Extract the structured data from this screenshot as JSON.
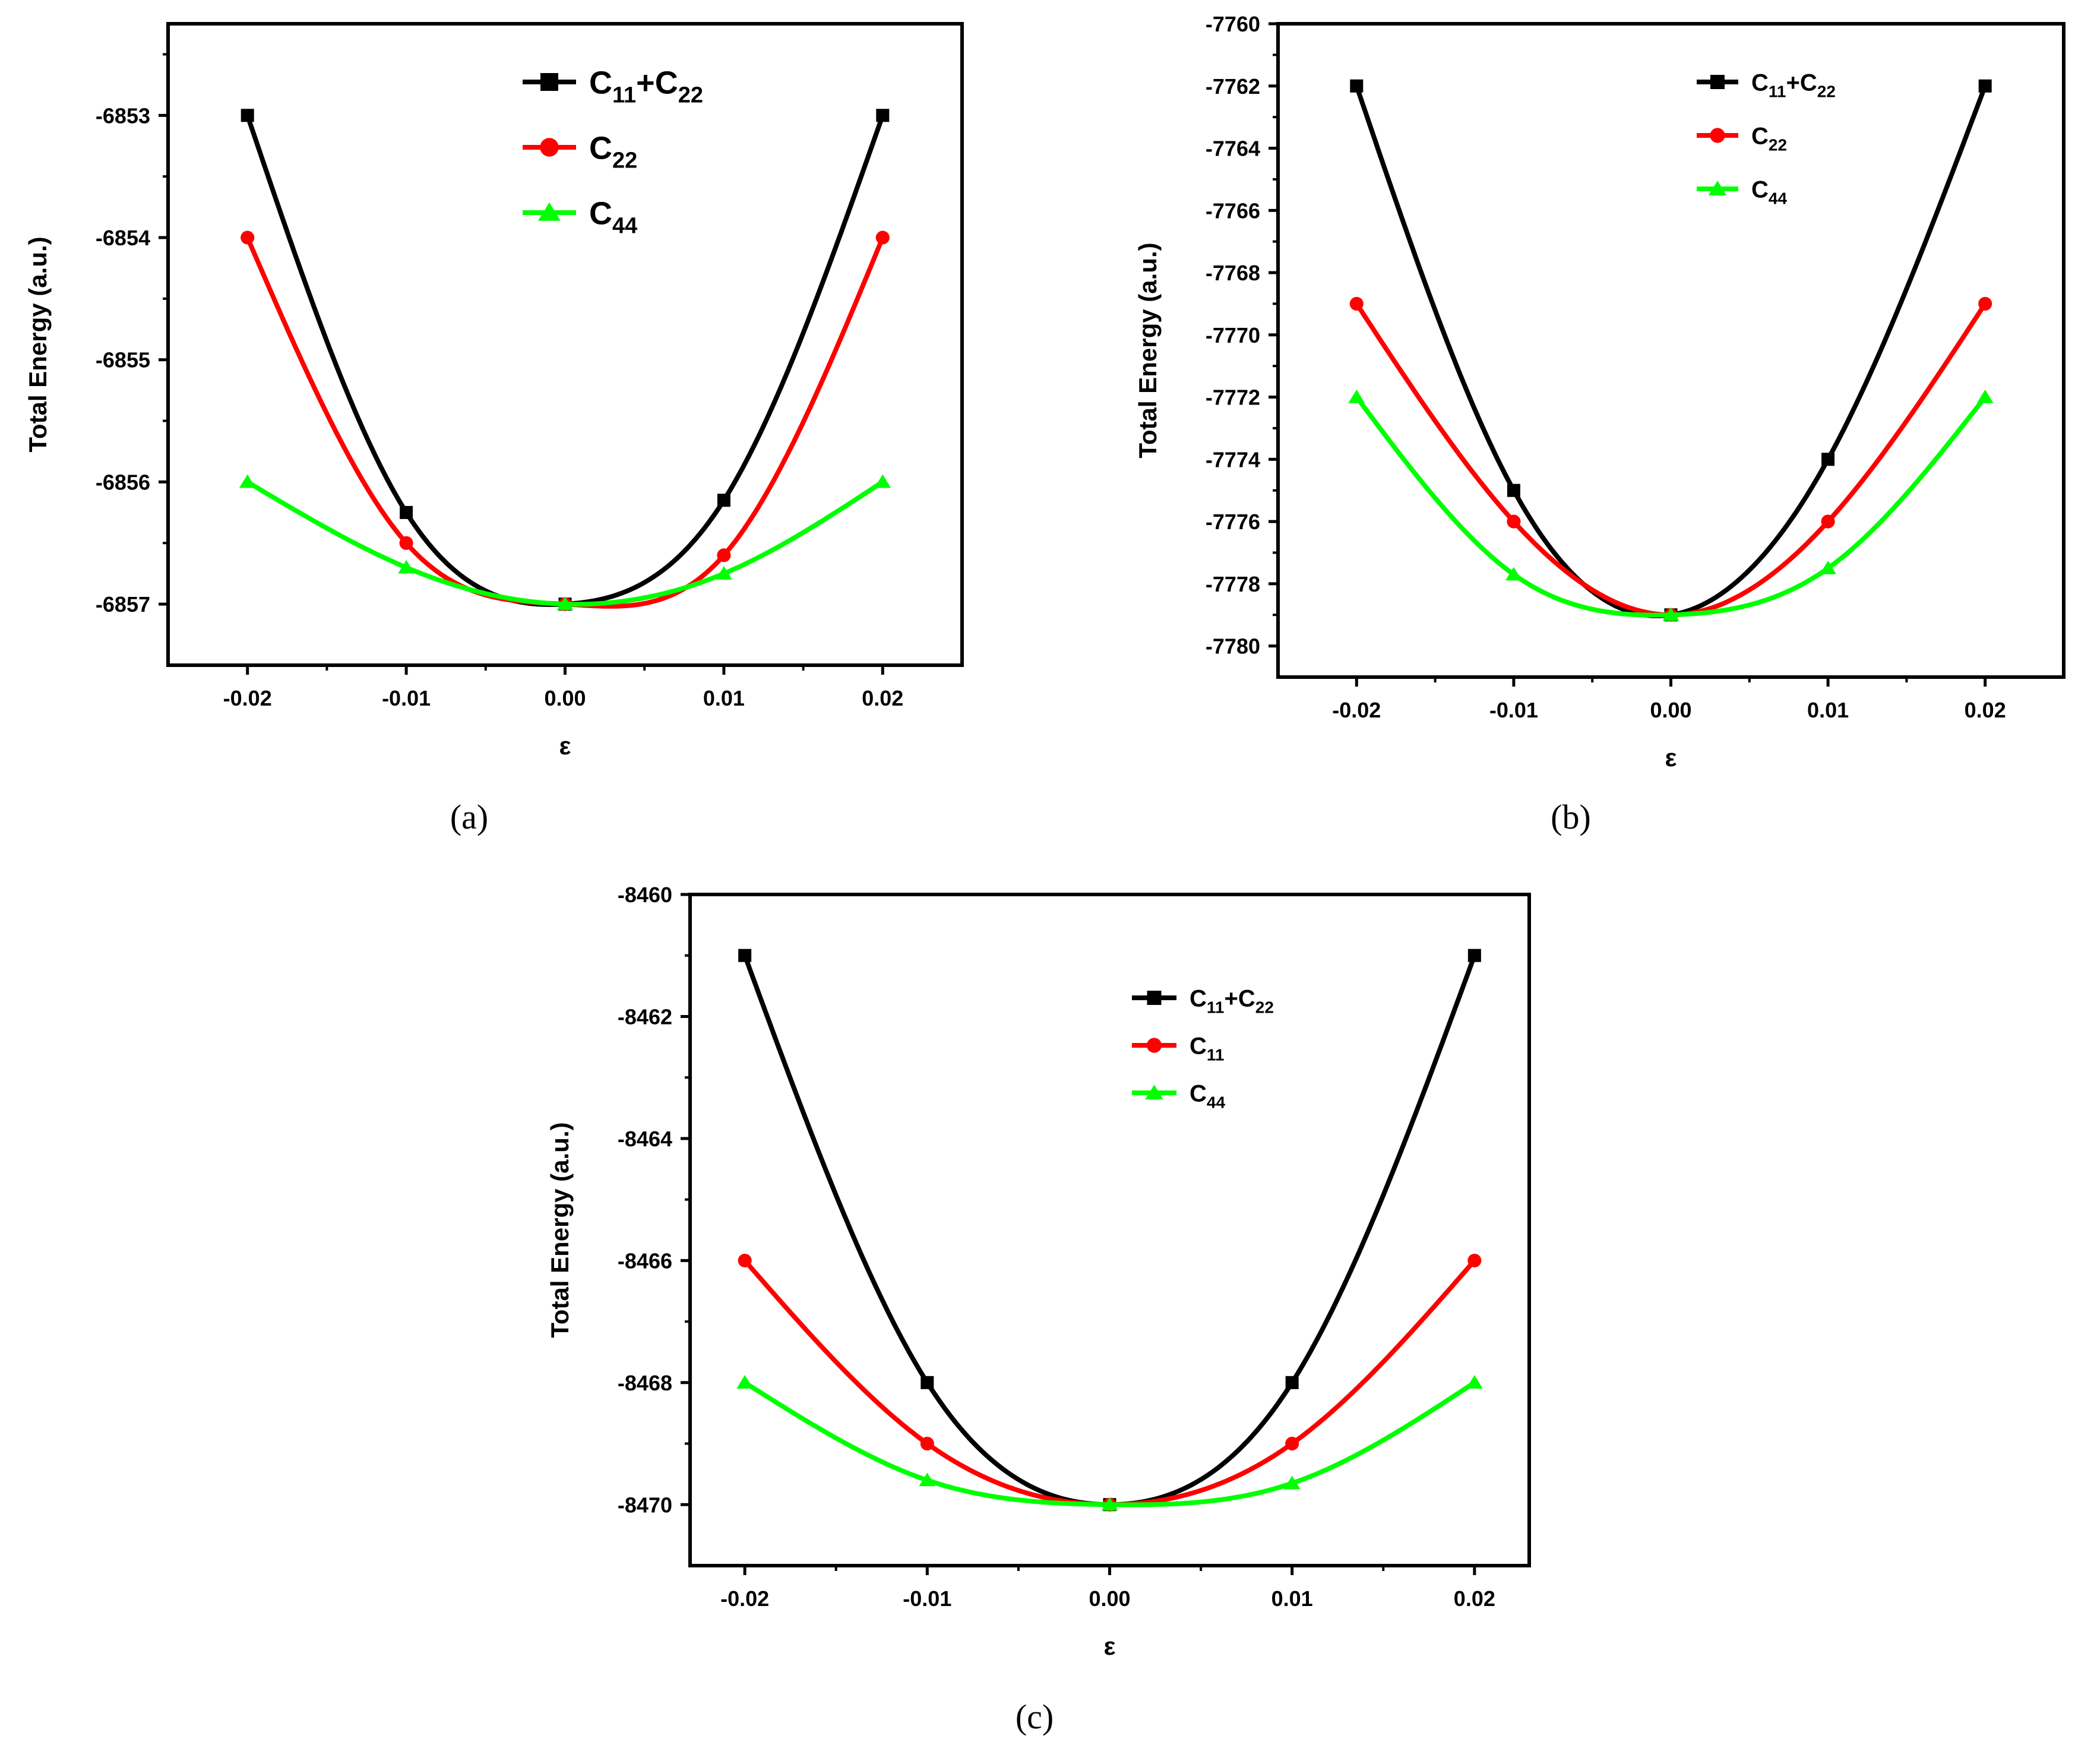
{
  "colors": {
    "c11c22": "#000000",
    "c22": "#ff0000",
    "c11": "#ff0000",
    "c44": "#00ff00"
  },
  "chart_data": [
    {
      "type": "line",
      "panel_label": "(a)",
      "xlabel": "ε",
      "ylabel": "Total Energy (a.u.)",
      "x": [
        -0.02,
        -0.01,
        0.0,
        0.01,
        0.02
      ],
      "xticks": [
        -0.02,
        -0.01,
        0.0,
        0.01,
        0.02
      ],
      "xtick_labels": [
        "-0.02",
        "-0.01",
        "0.00",
        "0.01",
        "0.02"
      ],
      "xlim": [
        -0.025,
        0.025
      ],
      "yticks": [
        -6857,
        -6856,
        -6855,
        -6854,
        -6853
      ],
      "ytick_labels": [
        "-6857",
        "-6856",
        "-6855",
        "-6854",
        "-6853"
      ],
      "ylim": [
        -6857.5,
        -6852.25
      ],
      "legend_position": "top-right",
      "series": [
        {
          "key": "c11c22",
          "name": "C11+C22",
          "base": "C",
          "sub1": "11",
          "mid": "+C",
          "sub2": "22",
          "marker": "square",
          "values": [
            -6853.0,
            -6856.25,
            -6857.0,
            -6856.15,
            -6853.0
          ]
        },
        {
          "key": "c22",
          "name": "C22",
          "base": "C",
          "sub1": "22",
          "marker": "circle",
          "values": [
            -6854.0,
            -6856.5,
            -6857.0,
            -6856.6,
            -6854.0
          ]
        },
        {
          "key": "c44",
          "name": "C44",
          "base": "C",
          "sub1": "44",
          "marker": "triangle",
          "values": [
            -6856.0,
            -6856.7,
            -6857.0,
            -6856.75,
            -6856.0
          ]
        }
      ]
    },
    {
      "type": "line",
      "panel_label": "(b)",
      "xlabel": "ε",
      "ylabel": "Total Energy (a.u.)",
      "x": [
        -0.02,
        -0.01,
        0.0,
        0.01,
        0.02
      ],
      "xticks": [
        -0.02,
        -0.01,
        0.0,
        0.01,
        0.02
      ],
      "xtick_labels": [
        "-0.02",
        "-0.01",
        "0.00",
        "0.01",
        "0.02"
      ],
      "xlim": [
        -0.025,
        0.025
      ],
      "yticks": [
        -7780,
        -7778,
        -7776,
        -7774,
        -7772,
        -7770,
        -7768,
        -7766,
        -7764,
        -7762,
        -7760
      ],
      "ytick_labels": [
        "-7780",
        "-7778",
        "-7776",
        "-7774",
        "-7772",
        "-7770",
        "-7768",
        "-7766",
        "-7764",
        "-7762",
        "-7760"
      ],
      "ylim": [
        -7781,
        -7760
      ],
      "legend_position": "top-right",
      "series": [
        {
          "key": "c11c22",
          "name": "C11+C22",
          "base": "C",
          "sub1": "11",
          "mid": "+C",
          "sub2": "22",
          "marker": "square",
          "values": [
            -7762.0,
            -7775.0,
            -7779.0,
            -7774.0,
            -7762.0
          ]
        },
        {
          "key": "c22",
          "name": "C22",
          "base": "C",
          "sub1": "22",
          "marker": "circle",
          "values": [
            -7769.0,
            -7776.0,
            -7779.0,
            -7776.0,
            -7769.0
          ]
        },
        {
          "key": "c44",
          "name": "C44",
          "base": "C",
          "sub1": "44",
          "marker": "triangle",
          "values": [
            -7772.0,
            -7777.7,
            -7779.0,
            -7777.5,
            -7772.0
          ]
        }
      ]
    },
    {
      "type": "line",
      "panel_label": "(c)",
      "xlabel": "ε",
      "ylabel": "Total Energy (a.u.)",
      "x": [
        -0.02,
        -0.01,
        0.0,
        0.01,
        0.02
      ],
      "xticks": [
        -0.02,
        -0.01,
        0.0,
        0.01,
        0.02
      ],
      "xtick_labels": [
        "-0.02",
        "-0.01",
        "0.00",
        "0.01",
        "0.02"
      ],
      "xlim": [
        -0.023,
        0.023
      ],
      "yticks": [
        -8470,
        -8468,
        -8466,
        -8464,
        -8462,
        -8460
      ],
      "ytick_labels": [
        "-8470",
        "-8468",
        "-8466",
        "-8464",
        "-8462",
        "-8460"
      ],
      "ylim": [
        -8471,
        -8460
      ],
      "legend_position": "top-right",
      "series": [
        {
          "key": "c11c22",
          "name": "C11+C22",
          "base": "C",
          "sub1": "11",
          "mid": "+C",
          "sub2": "22",
          "marker": "square",
          "values": [
            -8461.0,
            -8468.0,
            -8470.0,
            -8468.0,
            -8461.0
          ]
        },
        {
          "key": "c11",
          "name": "C11",
          "base": "C",
          "sub1": "11",
          "marker": "circle",
          "values": [
            -8466.0,
            -8469.0,
            -8470.0,
            -8469.0,
            -8466.0
          ]
        },
        {
          "key": "c44",
          "name": "C44",
          "base": "C",
          "sub1": "44",
          "marker": "triangle",
          "values": [
            -8468.0,
            -8469.6,
            -8470.0,
            -8469.65,
            -8468.0
          ]
        }
      ]
    }
  ]
}
